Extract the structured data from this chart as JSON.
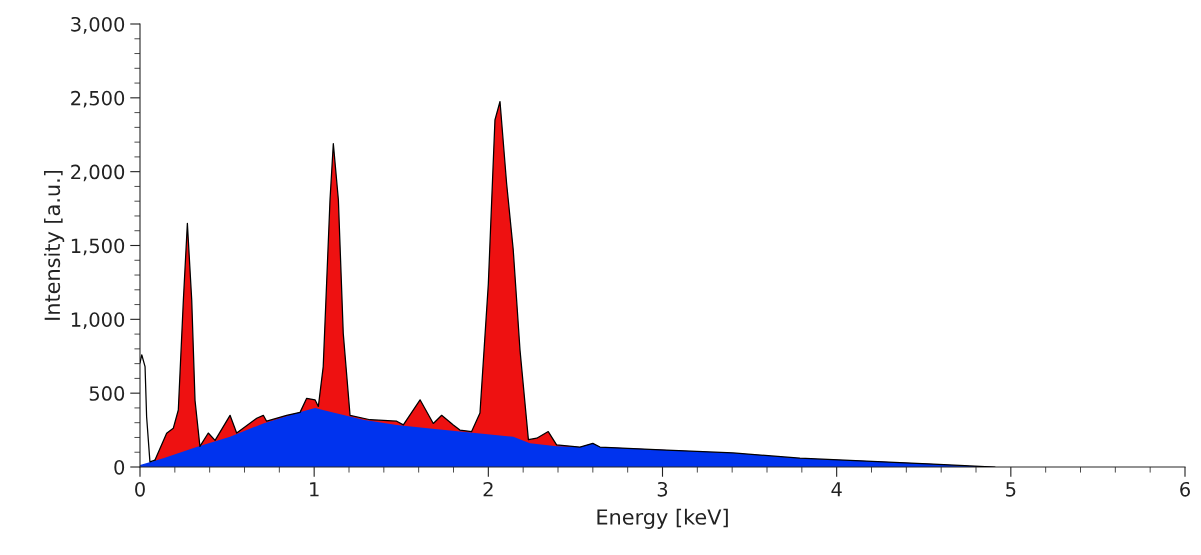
{
  "chart_data": {
    "type": "area",
    "xlabel": "Energy [keV]",
    "ylabel": "Intensity [a.u.]",
    "xlim": [
      0,
      6
    ],
    "ylim": [
      0,
      3000
    ],
    "xticks": [
      0,
      {
        "value": 0.2,
        "label": null
      },
      {
        "value": 0.4,
        "label": null
      },
      {
        "value": 0.6,
        "label": null
      },
      {
        "value": 0.8,
        "label": null
      },
      1,
      {
        "value": 1.2,
        "label": null
      },
      {
        "value": 1.4,
        "label": null
      },
      {
        "value": 1.6,
        "label": null
      },
      {
        "value": 1.8,
        "label": null
      },
      2,
      {
        "value": 2.2,
        "label": null
      },
      {
        "value": 2.4,
        "label": null
      },
      {
        "value": 2.6,
        "label": null
      },
      {
        "value": 2.8,
        "label": null
      },
      3,
      {
        "value": 3.2,
        "label": null
      },
      {
        "value": 3.4,
        "label": null
      },
      {
        "value": 3.6,
        "label": null
      },
      {
        "value": 3.8,
        "label": null
      },
      4,
      {
        "value": 4.2,
        "label": null
      },
      {
        "value": 4.4,
        "label": null
      },
      {
        "value": 4.6,
        "label": null
      },
      {
        "value": 4.8,
        "label": null
      },
      5,
      {
        "value": 5.2,
        "label": null
      },
      {
        "value": 5.4,
        "label": null
      },
      {
        "value": 5.6,
        "label": null
      },
      {
        "value": 5.8,
        "label": null
      },
      6
    ],
    "yticks": [
      0,
      {
        "value": 100,
        "label": null
      },
      {
        "value": 200,
        "label": null
      },
      {
        "value": 300,
        "label": null
      },
      {
        "value": 400,
        "label": null
      },
      500,
      {
        "value": 600,
        "label": null
      },
      {
        "value": 700,
        "label": null
      },
      {
        "value": 800,
        "label": null
      },
      {
        "value": 900,
        "label": null
      },
      {
        "value": 1000,
        "label": "1,000"
      },
      {
        "value": 1100,
        "label": null
      },
      {
        "value": 1200,
        "label": null
      },
      {
        "value": 1300,
        "label": null
      },
      {
        "value": 1400,
        "label": null
      },
      {
        "value": 1500,
        "label": "1,500"
      },
      {
        "value": 1600,
        "label": null
      },
      {
        "value": 1700,
        "label": null
      },
      {
        "value": 1800,
        "label": null
      },
      {
        "value": 1900,
        "label": null
      },
      {
        "value": 2000,
        "label": "2,000"
      },
      {
        "value": 2100,
        "label": null
      },
      {
        "value": 2200,
        "label": null
      },
      {
        "value": 2300,
        "label": null
      },
      {
        "value": 2400,
        "label": null
      },
      {
        "value": 2500,
        "label": "2,500"
      },
      {
        "value": 2600,
        "label": null
      },
      {
        "value": 2700,
        "label": null
      },
      {
        "value": 2800,
        "label": null
      },
      {
        "value": 2900,
        "label": null
      },
      {
        "value": 3000,
        "label": "3,000"
      }
    ],
    "grid": false,
    "legend": false,
    "series": [
      {
        "color": "#ee1111",
        "x": [
          0.086,
          0.153,
          0.191,
          0.22,
          0.249,
          0.272,
          0.297,
          0.316,
          0.344,
          0.392,
          0.431,
          0.517,
          0.555,
          0.67,
          0.708,
          0.727,
          0.842,
          0.919,
          0.957,
          1.005,
          1.024,
          1.052,
          1.091,
          1.11,
          1.139,
          1.167,
          1.206,
          1.321,
          1.474,
          1.512,
          1.608,
          1.684,
          1.732,
          1.799,
          1.837,
          1.904,
          1.952,
          2.0,
          2.038,
          2.067,
          2.105,
          2.143,
          2.182,
          2.23,
          2.278,
          2.344,
          2.392,
          2.526,
          2.6,
          2.641,
          3.024,
          3.406,
          3.789,
          4.172,
          4.555,
          4.765,
          4.909
        ],
        "values": [
          47,
          228,
          262,
          386,
          1130,
          1650,
          1130,
          450,
          140,
          230,
          180,
          350,
          230,
          330,
          350,
          310,
          350,
          370,
          465,
          455,
          410,
          680,
          1810,
          2190,
          1810,
          905,
          350,
          320,
          310,
          285,
          455,
          295,
          350,
          285,
          250,
          240,
          365,
          1240,
          2350,
          2475,
          1920,
          1470,
          790,
          185,
          195,
          240,
          150,
          135,
          160,
          135,
          115,
          95,
          60,
          40,
          20,
          7,
          0
        ]
      },
      {
        "color": "#0033ee",
        "x": [
          0,
          0.134,
          0.325,
          0.517,
          0.708,
          0.9,
          1.005,
          1.091,
          1.282,
          1.474,
          1.665,
          2.143,
          2.239,
          2.392,
          2.526,
          2.6,
          2.641,
          3.024,
          3.406,
          3.789,
          4.172,
          4.555,
          4.765,
          4.909
        ],
        "values": [
          14,
          60,
          135,
          205,
          295,
          365,
          400,
          375,
          320,
          285,
          260,
          205,
          160,
          140,
          135,
          160,
          135,
          115,
          95,
          60,
          40,
          20,
          7,
          0
        ]
      },
      {
        "type": "line",
        "color": "#000000",
        "x": [
          0,
          0.01,
          0.029,
          0.038,
          0.057,
          0.086
        ],
        "values": [
          705,
          760,
          680,
          340,
          35,
          47
        ]
      }
    ]
  }
}
